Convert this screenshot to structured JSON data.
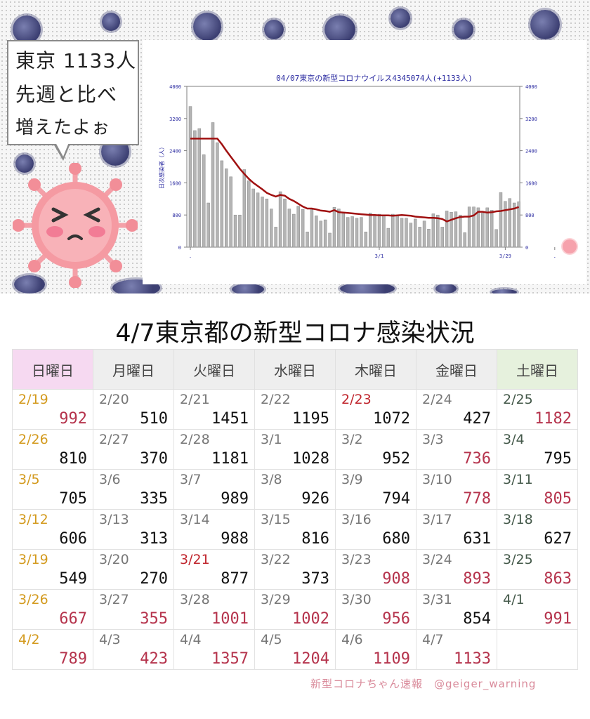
{
  "bubble": {
    "lines": [
      "東京 1133人",
      "先週と比べ",
      "増えたよぉ"
    ]
  },
  "colors": {
    "weekday_text": "#111111",
    "increase": "#b5334c",
    "sunday_date": "#d39a1e",
    "holiday_date": "#c0262e",
    "saturday_date": "#44594a",
    "normal_date": "#777777"
  },
  "chart_data": {
    "type": "bar",
    "title": "04/07東京の新型コロナウイルス4345074人(+1133人)",
    "ylabel": "日次感染者（人）",
    "ylim": [
      0,
      4000
    ],
    "yticks": [
      0,
      800,
      1600,
      2400,
      3200,
      4000
    ],
    "xticks": [
      ".",
      "3/1",
      "3/29",
      "."
    ],
    "xtick_index": [
      0,
      42,
      70,
      81
    ],
    "grid": false,
    "series": [
      {
        "type": "bar",
        "color": "#b4b4b4",
        "values": [
          3500,
          2900,
          2950,
          2300,
          1100,
          3100,
          2600,
          2150,
          1950,
          1750,
          800,
          800,
          1930,
          1650,
          1450,
          1350,
          1250,
          1200,
          950,
          500,
          1380,
          1200,
          950,
          820,
          1020,
          940,
          380,
          930,
          780,
          650,
          680,
          350,
          990,
          950,
          870,
          740,
          760,
          720,
          740,
          380,
          850,
          800,
          820,
          780,
          470,
          820,
          800,
          720,
          720,
          600,
          700,
          500,
          650,
          450,
          830,
          800,
          500,
          900,
          870,
          880,
          800,
          360,
          1000,
          1000,
          980,
          850,
          980,
          920,
          440,
          1360,
          1140,
          1210,
          1100,
          1130
        ]
      },
      {
        "type": "line",
        "color": "#a01010",
        "values": [
          2700,
          2700,
          2700,
          2700,
          2700,
          2700,
          2700,
          2560,
          2400,
          2250,
          2100,
          1950,
          1820,
          1700,
          1600,
          1520,
          1440,
          1350,
          1300,
          1260,
          1300,
          1280,
          1200,
          1150,
          1080,
          1010,
          960,
          960,
          940,
          910,
          900,
          880,
          920,
          870,
          860,
          850,
          840,
          830,
          820,
          810,
          800,
          800,
          790,
          790,
          790,
          780,
          790,
          800,
          790,
          780,
          760,
          750,
          740,
          730,
          730,
          720,
          700,
          640,
          680,
          720,
          750,
          760,
          760,
          790,
          880,
          880,
          860,
          870,
          890,
          900,
          920,
          940,
          960,
          1000
        ]
      }
    ]
  },
  "table": {
    "title": "4/7東京都の新型コロナ感染状況",
    "headers": [
      "日曜日",
      "月曜日",
      "火曜日",
      "水曜日",
      "木曜日",
      "金曜日",
      "土曜日"
    ],
    "rows": [
      [
        {
          "d": "2/19",
          "v": "992",
          "dc": "sunday",
          "vc": "up"
        },
        {
          "d": "2/20",
          "v": "510"
        },
        {
          "d": "2/21",
          "v": "1451"
        },
        {
          "d": "2/22",
          "v": "1195"
        },
        {
          "d": "2/23",
          "v": "1072",
          "dc": "holiday"
        },
        {
          "d": "2/24",
          "v": "427"
        },
        {
          "d": "2/25",
          "v": "1182",
          "dc": "saturday",
          "vc": "up"
        }
      ],
      [
        {
          "d": "2/26",
          "v": "810",
          "dc": "sunday"
        },
        {
          "d": "2/27",
          "v": "370"
        },
        {
          "d": "2/28",
          "v": "1181"
        },
        {
          "d": "3/1",
          "v": "1028"
        },
        {
          "d": "3/2",
          "v": "952"
        },
        {
          "d": "3/3",
          "v": "736",
          "vc": "up"
        },
        {
          "d": "3/4",
          "v": "795",
          "dc": "saturday"
        }
      ],
      [
        {
          "d": "3/5",
          "v": "705",
          "dc": "sunday"
        },
        {
          "d": "3/6",
          "v": "335"
        },
        {
          "d": "3/7",
          "v": "989"
        },
        {
          "d": "3/8",
          "v": "926"
        },
        {
          "d": "3/9",
          "v": "794"
        },
        {
          "d": "3/10",
          "v": "778",
          "vc": "up"
        },
        {
          "d": "3/11",
          "v": "805",
          "dc": "saturday",
          "vc": "up"
        }
      ],
      [
        {
          "d": "3/12",
          "v": "606",
          "dc": "sunday"
        },
        {
          "d": "3/13",
          "v": "313"
        },
        {
          "d": "3/14",
          "v": "988"
        },
        {
          "d": "3/15",
          "v": "816"
        },
        {
          "d": "3/16",
          "v": "680"
        },
        {
          "d": "3/17",
          "v": "631"
        },
        {
          "d": "3/18",
          "v": "627",
          "dc": "saturday"
        }
      ],
      [
        {
          "d": "3/19",
          "v": "549",
          "dc": "sunday"
        },
        {
          "d": "3/20",
          "v": "270"
        },
        {
          "d": "3/21",
          "v": "877",
          "dc": "holiday"
        },
        {
          "d": "3/22",
          "v": "373"
        },
        {
          "d": "3/23",
          "v": "908",
          "vc": "up"
        },
        {
          "d": "3/24",
          "v": "893",
          "vc": "up"
        },
        {
          "d": "3/25",
          "v": "863",
          "dc": "saturday",
          "vc": "up"
        }
      ],
      [
        {
          "d": "3/26",
          "v": "667",
          "dc": "sunday",
          "vc": "up"
        },
        {
          "d": "3/27",
          "v": "355",
          "vc": "up"
        },
        {
          "d": "3/28",
          "v": "1001",
          "vc": "up"
        },
        {
          "d": "3/29",
          "v": "1002",
          "vc": "up"
        },
        {
          "d": "3/30",
          "v": "956",
          "vc": "up"
        },
        {
          "d": "3/31",
          "v": "854"
        },
        {
          "d": "4/1",
          "v": "991",
          "dc": "saturday",
          "vc": "up"
        }
      ],
      [
        {
          "d": "4/2",
          "v": "789",
          "dc": "sunday",
          "vc": "up"
        },
        {
          "d": "4/3",
          "v": "423",
          "vc": "up"
        },
        {
          "d": "4/4",
          "v": "1357",
          "vc": "up"
        },
        {
          "d": "4/5",
          "v": "1204",
          "vc": "up"
        },
        {
          "d": "4/6",
          "v": "1109",
          "vc": "up"
        },
        {
          "d": "4/7",
          "v": "1133",
          "vc": "up"
        },
        {
          "d": "",
          "v": ""
        }
      ]
    ]
  },
  "watermark": "新型コロナちゃん速報　@geiger_warning"
}
